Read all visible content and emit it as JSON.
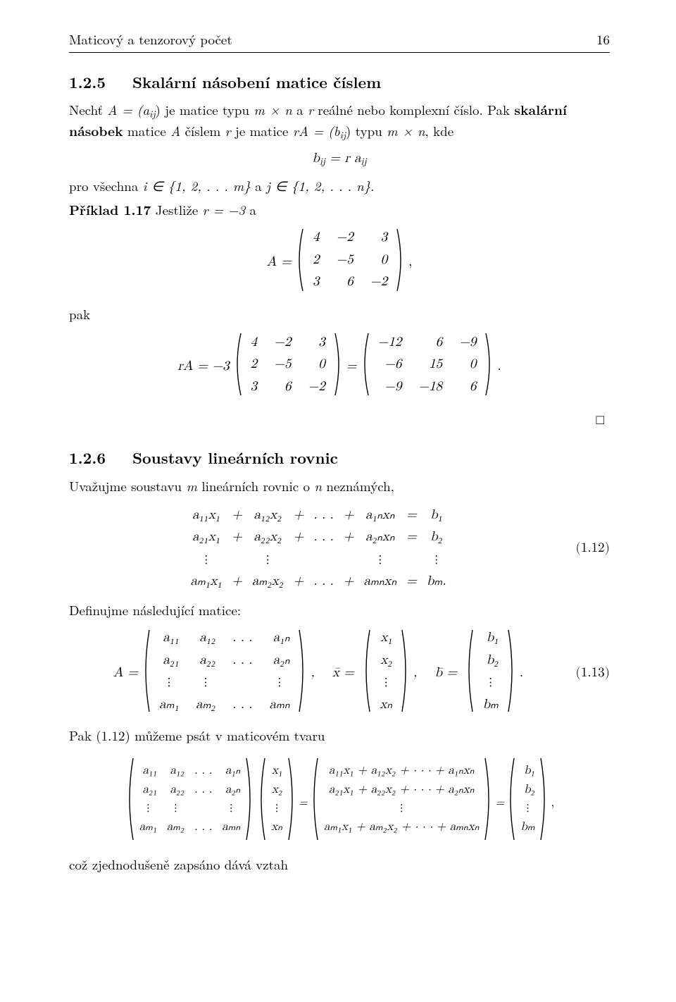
{
  "colors": {
    "fg": "#000000",
    "bg": "#ffffff",
    "rule": "#000000"
  },
  "fonts": {
    "body_pt": 19,
    "heading_pt": 22,
    "family": "Latin Modern Roman"
  },
  "header": {
    "left": "Maticový a tenzorový počet",
    "page": "16"
  },
  "sec125": {
    "num": "1.2.5",
    "title": "Skalární násobení matice číslem",
    "para1_pre": "Nechť ",
    "para1_A": "A = (a",
    "para1_Asub": "ij",
    "para1_post1": ") je matice typu ",
    "para1_mn": "m × n",
    "para1_post2": " a ",
    "para1_r": "r",
    "para1_post3": " reálné nebo komplexní číslo. Pak ",
    "para1_bold": "skalární násobek",
    "para1_post4": " matice ",
    "para1_A2": "A",
    "para1_post5": " číslem ",
    "para1_r2": "r",
    "para1_post6": " je matice ",
    "para1_rA": "rA = (b",
    "para1_rAsub": "ij",
    "para1_post7": ") typu ",
    "para1_mn2": "m × n",
    "para1_post8": ", kde",
    "eq_bij": "b",
    "eq_bij_sub": "ij",
    "eq_eq": " = r a",
    "eq_ra_sub": "ij",
    "para2_pre": "pro všechna ",
    "para2_i": "i ∈ {1, 2, . . . m}",
    "para2_mid": " a ",
    "para2_j": "j ∈ {1, 2, . . . n}",
    "para2_end": "."
  },
  "ex117": {
    "label": "Příklad 1.17",
    "text": " Jestliže ",
    "r": "r = −3",
    "and": " a",
    "A_pre": "A = ",
    "A": [
      [
        "4",
        "−2",
        "3"
      ],
      [
        "2",
        "−5",
        "0"
      ],
      [
        "3",
        "6",
        "−2"
      ]
    ],
    "A_post": " ,",
    "pak": "pak",
    "rA_pre": "rA = −3 ",
    "M1": [
      [
        "4",
        "−2",
        "3"
      ],
      [
        "2",
        "−5",
        "0"
      ],
      [
        "3",
        "6",
        "−2"
      ]
    ],
    "eq": " = ",
    "M2": [
      [
        "−12",
        "6",
        "−9"
      ],
      [
        "−6",
        "15",
        "0"
      ],
      [
        "−9",
        "−18",
        "6"
      ]
    ],
    "end": " .",
    "qed": "□"
  },
  "sec126": {
    "num": "1.2.6",
    "title": "Soustavy lineárních rovnic",
    "intro_pre": "Uvažujme soustavu ",
    "intro_m": "m",
    "intro_mid": " lineárních rovnic o ",
    "intro_n": "n",
    "intro_post": " neznámých,",
    "sys_rows": [
      [
        "a₁₁x₁",
        "+",
        "a₁₂x₂",
        "+",
        ". . .",
        "+",
        "a₁ₙxₙ",
        "=",
        "b₁"
      ],
      [
        "a₂₁x₁",
        "+",
        "a₂₂x₂",
        "+",
        ". . .",
        "+",
        "a₂ₙxₙ",
        "=",
        "b₂"
      ],
      [
        "⋮",
        "",
        "⋮",
        "",
        "",
        "",
        "⋮",
        "",
        "⋮"
      ],
      [
        "aₘ₁x₁",
        "+",
        "aₘ₂x₂",
        "+",
        ". . .",
        "+",
        "aₘₙxₙ",
        "=",
        "bₘ."
      ]
    ],
    "eqnum1": "(1.12)",
    "def_pre": "Definujme následující matice:",
    "A_pre": "A = ",
    "A": [
      [
        "a₁₁",
        "a₁₂",
        ". . .",
        "a₁ₙ"
      ],
      [
        "a₂₁",
        "a₂₂",
        ". . .",
        "a₂ₙ"
      ],
      [
        "⋮",
        "⋮",
        "",
        "⋮"
      ],
      [
        "aₘ₁",
        "aₘ₂",
        ". . .",
        "aₘₙ"
      ]
    ],
    "x_pre": ",    x̄ = ",
    "x": [
      [
        "x₁"
      ],
      [
        "x₂"
      ],
      [
        "⋮"
      ],
      [
        "xₙ"
      ]
    ],
    "b_pre": ",    b̄ = ",
    "b": [
      [
        "b₁"
      ],
      [
        "b₂"
      ],
      [
        "⋮"
      ],
      [
        "bₘ"
      ]
    ],
    "b_post": " .",
    "eqnum2": "(1.13)",
    "pak_line_pre": "Pak (1.12) můžeme psát v maticovém tvaru",
    "big_A": [
      [
        "a₁₁",
        "a₁₂",
        ". . .",
        "a₁ₙ"
      ],
      [
        "a₂₁",
        "a₂₂",
        ". . .",
        "a₂ₙ"
      ],
      [
        "⋮",
        "⋮",
        "",
        "⋮"
      ],
      [
        "aₘ₁",
        "aₘ₂",
        ". . .",
        "aₘₙ"
      ]
    ],
    "big_x": [
      [
        "x₁"
      ],
      [
        "x₂"
      ],
      [
        "⋮"
      ],
      [
        "xₙ"
      ]
    ],
    "big_eq1": " = ",
    "big_Ax": [
      [
        "a₁₁x₁ + a₁₂x₂ + · · · + a₁ₙxₙ"
      ],
      [
        "a₂₁x₁ + a₂₂x₂ + · · · + a₂ₙxₙ"
      ],
      [
        "⋮"
      ],
      [
        "aₘ₁x₁ + aₘ₂x₂ + · · · + aₘₙxₙ"
      ]
    ],
    "big_eq2": " = ",
    "big_b": [
      [
        "b₁"
      ],
      [
        "b₂"
      ],
      [
        "⋮"
      ],
      [
        "bₘ"
      ]
    ],
    "big_post": " ,",
    "closing": "což zjednodušeně zapsáno dává vztah"
  }
}
